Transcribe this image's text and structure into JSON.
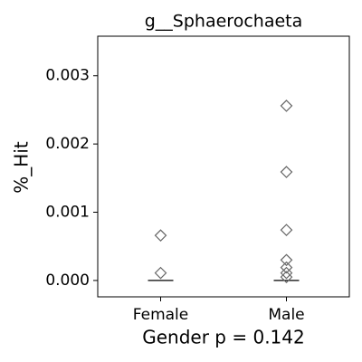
{
  "chart_data": {
    "type": "strip",
    "title": "g__Sphaerochaeta",
    "x_label": "Gender p = 0.142",
    "y_label": "%_Hit",
    "categories": [
      "Female",
      "Male"
    ],
    "points": [
      [
        0.00066,
        0.00011
      ],
      [
        0.00256,
        0.00159,
        0.00074,
        0.0003,
        0.00019,
        0.00011,
        5e-05
      ]
    ],
    "medians": [
      0,
      0
    ],
    "marker_color": "#666666",
    "median_color": "#000000",
    "ylim": [
      -0.00024,
      0.00358
    ],
    "yticks": [
      {
        "value": 0,
        "label": "0.000"
      },
      {
        "value": 0.001,
        "label": "0.001"
      },
      {
        "value": 0.002,
        "label": "0.002"
      },
      {
        "value": 0.003,
        "label": "0.003"
      }
    ]
  }
}
